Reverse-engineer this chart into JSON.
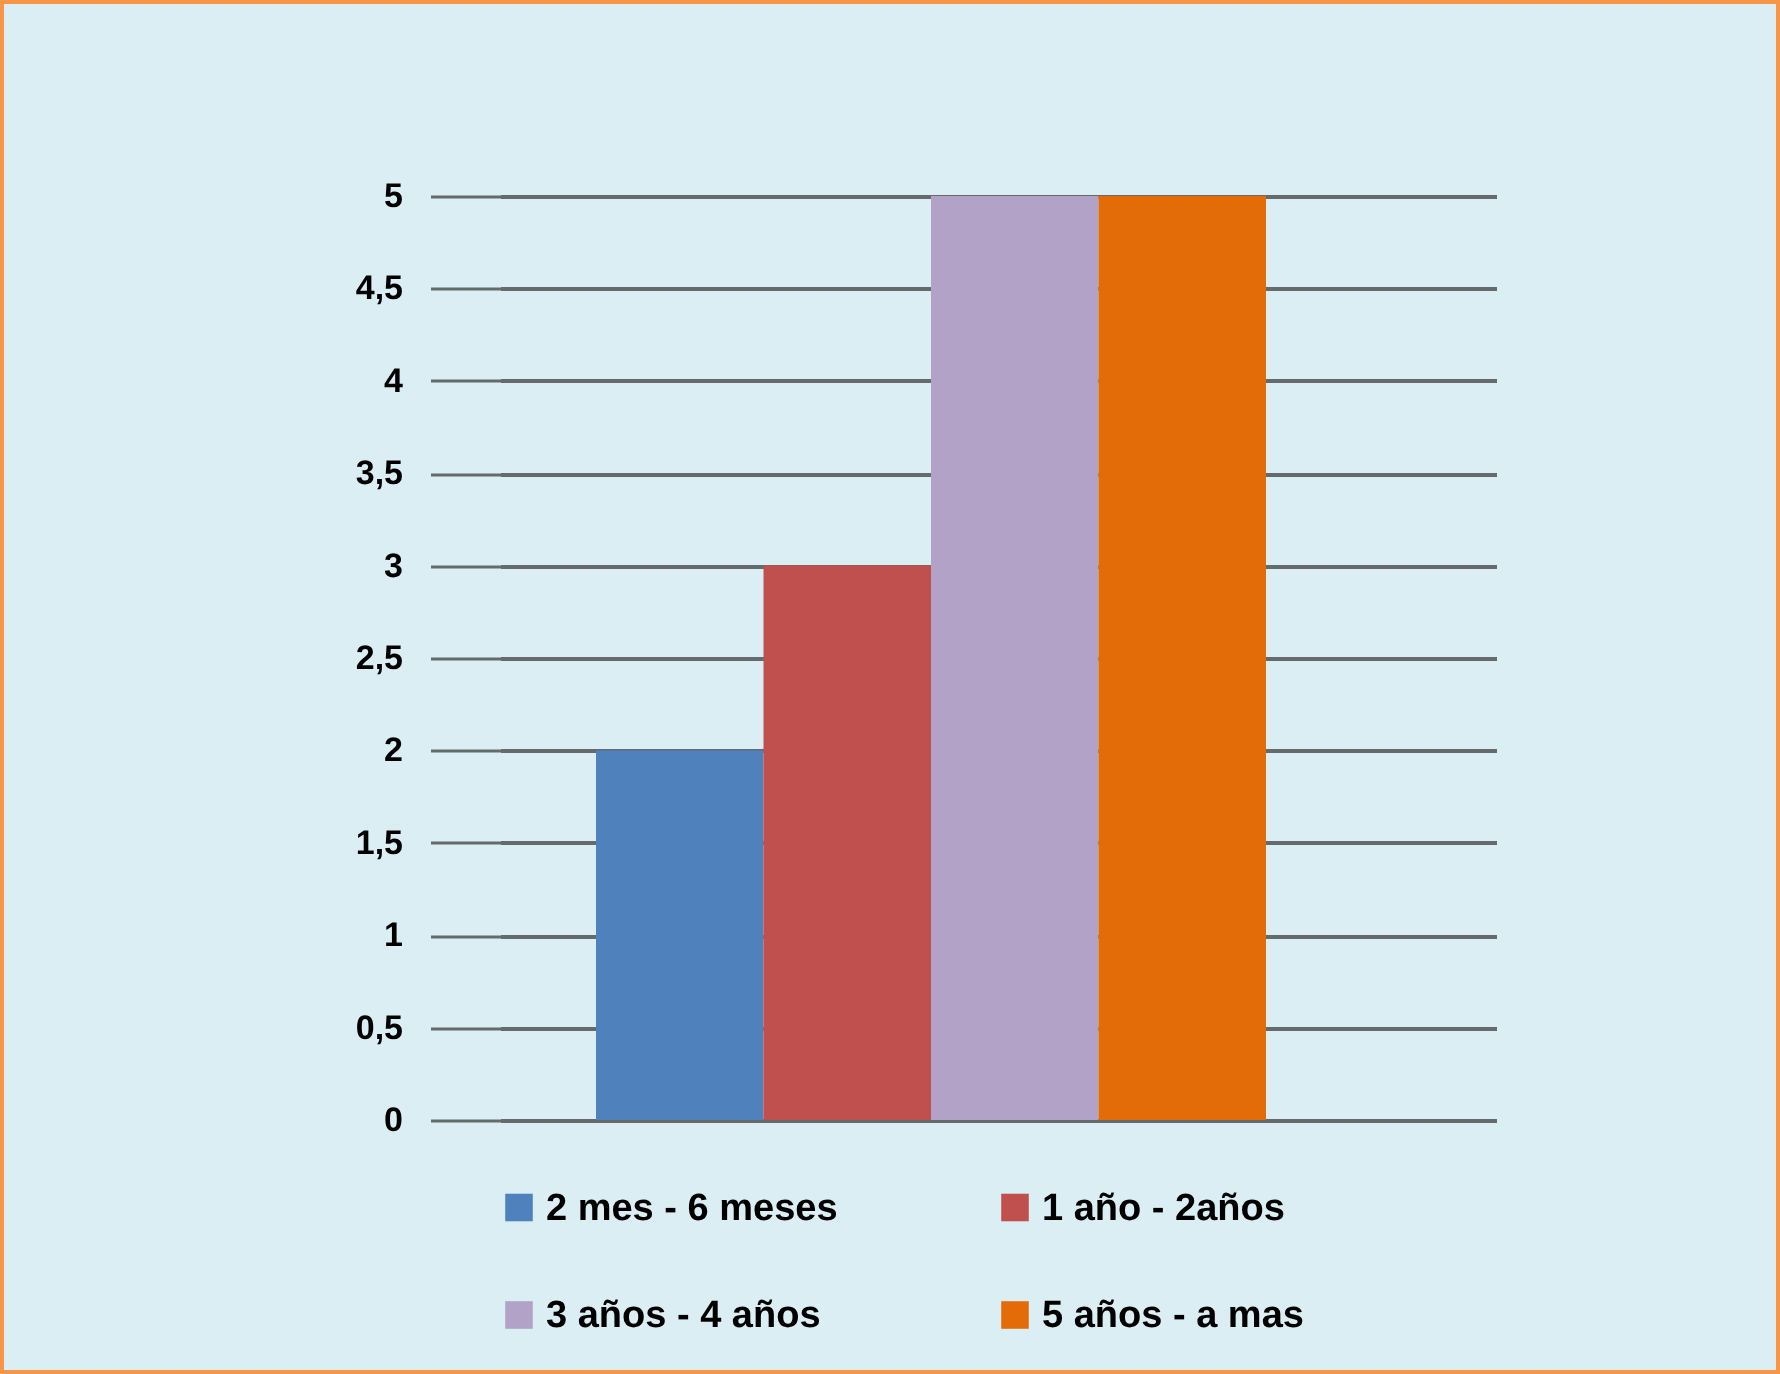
{
  "chart_data": {
    "type": "bar",
    "categories": [
      null
    ],
    "series": [
      {
        "name": "2 mes - 6 meses",
        "color": "#4f81bd",
        "values": [
          2
        ]
      },
      {
        "name": "1 año - 2años",
        "color": "#c0504d",
        "values": [
          3
        ]
      },
      {
        "name": "3 años - 4 años",
        "color": "#b3a2c7",
        "values": [
          5
        ]
      },
      {
        "name": "5 años - a mas",
        "color": "#e36c09",
        "values": [
          5
        ]
      }
    ],
    "ylim": [
      0,
      5
    ],
    "yticks": [
      0,
      {
        "value": 0.5,
        "label": "0,5"
      },
      1,
      {
        "value": 1.5,
        "label": "1,5"
      },
      2,
      {
        "value": 2.5,
        "label": "2,5"
      },
      3,
      {
        "value": 3.5,
        "label": "3,5"
      },
      4,
      {
        "value": 4.5,
        "label": "4,5"
      },
      5
    ],
    "grid": "y",
    "legend": "bottom"
  }
}
